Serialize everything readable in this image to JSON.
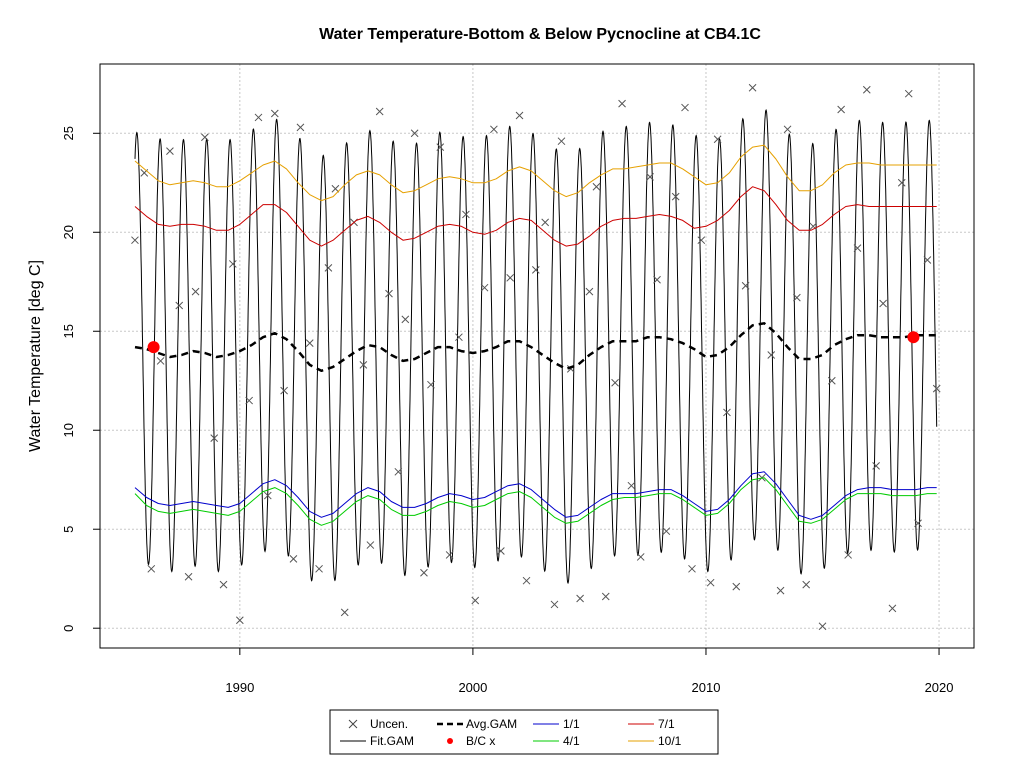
{
  "chart_data": {
    "type": "line",
    "title": "Water Temperature-Bottom & Below Pycnocline at CB4.1C",
    "xlabel": "",
    "ylabel": "Water Temperature [deg C]",
    "xlim": [
      1984.0,
      2021.5
    ],
    "ylim": [
      -1.0,
      28.5
    ],
    "x_ticks": [
      1990,
      2000,
      2010,
      2020
    ],
    "x_tick_labels": [
      "1990",
      "2000",
      "2010",
      "2020"
    ],
    "y_ticks": [
      0,
      5,
      10,
      15,
      20,
      25
    ],
    "y_tick_labels": [
      "0",
      "5",
      "10",
      "15",
      "20",
      "25"
    ],
    "grid": true,
    "legend_position": "bottom",
    "legend": [
      {
        "key": "uncen",
        "label": "Uncen."
      },
      {
        "key": "fitgam",
        "label": "Fit.GAM"
      },
      {
        "key": "avggam",
        "label": "Avg.GAM"
      },
      {
        "key": "bcx",
        "label": "B/C x"
      },
      {
        "key": "jan1",
        "label": "1/1"
      },
      {
        "key": "apr1",
        "label": "4/1"
      },
      {
        "key": "jul1",
        "label": "7/1"
      },
      {
        "key": "oct1",
        "label": "10/1"
      }
    ],
    "fit_seasonal": {
      "x_start": 1985.5,
      "x_end": 2019.9,
      "description_values": {
        "summer_peak": 25.5,
        "winter_trough": 3.8
      }
    },
    "series": [
      {
        "name": "Avg.GAM",
        "color": "#000000",
        "x": [
          1985.5,
          1986.0,
          1986.5,
          1987.0,
          1987.5,
          1988.0,
          1988.5,
          1989.0,
          1989.5,
          1990.0,
          1990.5,
          1991.0,
          1991.5,
          1992.0,
          1992.5,
          1993.0,
          1993.5,
          1994.0,
          1994.5,
          1995.0,
          1995.5,
          1996.0,
          1996.5,
          1997.0,
          1997.5,
          1998.0,
          1998.5,
          1999.0,
          1999.5,
          2000.0,
          2000.5,
          2001.0,
          2001.5,
          2002.0,
          2002.5,
          2003.0,
          2003.5,
          2004.0,
          2004.5,
          2005.0,
          2005.5,
          2006.0,
          2006.5,
          2007.0,
          2007.5,
          2008.0,
          2008.5,
          2009.0,
          2009.5,
          2010.0,
          2010.5,
          2011.0,
          2011.5,
          2012.0,
          2012.5,
          2013.0,
          2013.5,
          2014.0,
          2014.5,
          2015.0,
          2015.5,
          2016.0,
          2016.5,
          2017.0,
          2017.5,
          2018.0,
          2018.5,
          2019.0,
          2019.5,
          2019.9
        ],
        "values": [
          14.2,
          14.1,
          13.9,
          13.7,
          13.8,
          14.0,
          13.9,
          13.7,
          13.8,
          14.0,
          14.3,
          14.7,
          14.9,
          14.6,
          14.0,
          13.3,
          13.0,
          13.2,
          13.6,
          14.0,
          14.3,
          14.2,
          13.8,
          13.5,
          13.6,
          13.9,
          14.2,
          14.2,
          14.0,
          13.9,
          14.0,
          14.2,
          14.5,
          14.5,
          14.2,
          13.8,
          13.4,
          13.1,
          13.3,
          13.8,
          14.2,
          14.5,
          14.5,
          14.5,
          14.7,
          14.7,
          14.6,
          14.4,
          14.1,
          13.7,
          13.8,
          14.2,
          14.8,
          15.3,
          15.4,
          14.9,
          14.2,
          13.6,
          13.6,
          13.8,
          14.3,
          14.6,
          14.8,
          14.8,
          14.7,
          14.7,
          14.7,
          14.8,
          14.8,
          14.8
        ]
      },
      {
        "name": "1/1",
        "color": "#0000cc",
        "x": [
          1985.5,
          1986.0,
          1986.5,
          1987.0,
          1987.5,
          1988.0,
          1988.5,
          1989.0,
          1989.5,
          1990.0,
          1990.5,
          1991.0,
          1991.5,
          1992.0,
          1992.5,
          1993.0,
          1993.5,
          1994.0,
          1994.5,
          1995.0,
          1995.5,
          1996.0,
          1996.5,
          1997.0,
          1997.5,
          1998.0,
          1998.5,
          1999.0,
          1999.5,
          2000.0,
          2000.5,
          2001.0,
          2001.5,
          2002.0,
          2002.5,
          2003.0,
          2003.5,
          2004.0,
          2004.5,
          2005.0,
          2005.5,
          2006.0,
          2006.5,
          2007.0,
          2007.5,
          2008.0,
          2008.5,
          2009.0,
          2009.5,
          2010.0,
          2010.5,
          2011.0,
          2011.5,
          2012.0,
          2012.5,
          2013.0,
          2013.5,
          2014.0,
          2014.5,
          2015.0,
          2015.5,
          2016.0,
          2016.5,
          2017.0,
          2017.5,
          2018.0,
          2018.5,
          2019.0,
          2019.5,
          2019.9
        ],
        "values": [
          7.1,
          6.6,
          6.3,
          6.2,
          6.3,
          6.4,
          6.3,
          6.2,
          6.1,
          6.3,
          6.8,
          7.3,
          7.5,
          7.2,
          6.6,
          5.9,
          5.6,
          5.8,
          6.3,
          6.8,
          7.1,
          6.9,
          6.4,
          6.1,
          6.1,
          6.3,
          6.6,
          6.8,
          6.7,
          6.5,
          6.6,
          6.9,
          7.2,
          7.3,
          7.0,
          6.5,
          6.0,
          5.6,
          5.7,
          6.1,
          6.5,
          6.8,
          6.8,
          6.8,
          6.9,
          7.0,
          7.0,
          6.7,
          6.3,
          5.9,
          6.0,
          6.5,
          7.2,
          7.8,
          7.9,
          7.3,
          6.5,
          5.7,
          5.5,
          5.7,
          6.2,
          6.7,
          7.0,
          7.1,
          7.1,
          7.0,
          7.0,
          7.0,
          7.1,
          7.1
        ]
      },
      {
        "name": "4/1",
        "color": "#00cc00",
        "x": [
          1985.5,
          1986.0,
          1986.5,
          1987.0,
          1987.5,
          1988.0,
          1988.5,
          1989.0,
          1989.5,
          1990.0,
          1990.5,
          1991.0,
          1991.5,
          1992.0,
          1992.5,
          1993.0,
          1993.5,
          1994.0,
          1994.5,
          1995.0,
          1995.5,
          1996.0,
          1996.5,
          1997.0,
          1997.5,
          1998.0,
          1998.5,
          1999.0,
          1999.5,
          2000.0,
          2000.5,
          2001.0,
          2001.5,
          2002.0,
          2002.5,
          2003.0,
          2003.5,
          2004.0,
          2004.5,
          2005.0,
          2005.5,
          2006.0,
          2006.5,
          2007.0,
          2007.5,
          2008.0,
          2008.5,
          2009.0,
          2009.5,
          2010.0,
          2010.5,
          2011.0,
          2011.5,
          2012.0,
          2012.5,
          2013.0,
          2013.5,
          2014.0,
          2014.5,
          2015.0,
          2015.5,
          2016.0,
          2016.5,
          2017.0,
          2017.5,
          2018.0,
          2018.5,
          2019.0,
          2019.5,
          2019.9
        ],
        "values": [
          6.8,
          6.2,
          5.9,
          5.8,
          5.9,
          6.0,
          5.9,
          5.8,
          5.7,
          5.9,
          6.4,
          6.9,
          7.1,
          6.8,
          6.2,
          5.5,
          5.2,
          5.4,
          5.9,
          6.4,
          6.7,
          6.5,
          6.0,
          5.7,
          5.7,
          5.9,
          6.2,
          6.4,
          6.3,
          6.1,
          6.2,
          6.5,
          6.8,
          6.9,
          6.6,
          6.1,
          5.6,
          5.3,
          5.4,
          5.8,
          6.2,
          6.5,
          6.6,
          6.6,
          6.7,
          6.8,
          6.8,
          6.5,
          6.1,
          5.7,
          5.8,
          6.3,
          7.0,
          7.5,
          7.6,
          7.0,
          6.2,
          5.4,
          5.3,
          5.5,
          6.0,
          6.5,
          6.8,
          6.8,
          6.8,
          6.7,
          6.7,
          6.7,
          6.8,
          6.8
        ]
      },
      {
        "name": "7/1",
        "color": "#cc0000",
        "x": [
          1985.5,
          1986.0,
          1986.5,
          1987.0,
          1987.5,
          1988.0,
          1988.5,
          1989.0,
          1989.5,
          1990.0,
          1990.5,
          1991.0,
          1991.5,
          1992.0,
          1992.5,
          1993.0,
          1993.5,
          1994.0,
          1994.5,
          1995.0,
          1995.5,
          1996.0,
          1996.5,
          1997.0,
          1997.5,
          1998.0,
          1998.5,
          1999.0,
          1999.5,
          2000.0,
          2000.5,
          2001.0,
          2001.5,
          2002.0,
          2002.5,
          2003.0,
          2003.5,
          2004.0,
          2004.5,
          2005.0,
          2005.5,
          2006.0,
          2006.5,
          2007.0,
          2007.5,
          2008.0,
          2008.5,
          2009.0,
          2009.5,
          2010.0,
          2010.5,
          2011.0,
          2011.5,
          2012.0,
          2012.5,
          2013.0,
          2013.5,
          2014.0,
          2014.5,
          2015.0,
          2015.5,
          2016.0,
          2016.5,
          2017.0,
          2017.5,
          2018.0,
          2018.5,
          2019.0,
          2019.5,
          2019.9
        ],
        "values": [
          21.3,
          20.8,
          20.4,
          20.3,
          20.4,
          20.4,
          20.3,
          20.1,
          20.1,
          20.4,
          20.9,
          21.4,
          21.4,
          21.0,
          20.3,
          19.6,
          19.3,
          19.6,
          20.1,
          20.6,
          20.8,
          20.5,
          20.0,
          19.6,
          19.7,
          20.0,
          20.3,
          20.4,
          20.3,
          20.0,
          19.9,
          20.1,
          20.5,
          20.7,
          20.6,
          20.1,
          19.6,
          19.3,
          19.4,
          19.8,
          20.3,
          20.6,
          20.7,
          20.7,
          20.8,
          20.9,
          20.8,
          20.6,
          20.2,
          20.3,
          20.6,
          21.1,
          21.8,
          22.3,
          22.1,
          21.4,
          20.6,
          20.1,
          20.1,
          20.4,
          20.9,
          21.3,
          21.4,
          21.3,
          21.3,
          21.3,
          21.3,
          21.3,
          21.3,
          21.3
        ]
      },
      {
        "name": "10/1",
        "color": "#e6a000",
        "x": [
          1985.5,
          1986.0,
          1986.5,
          1987.0,
          1987.5,
          1988.0,
          1988.5,
          1989.0,
          1989.5,
          1990.0,
          1990.5,
          1991.0,
          1991.5,
          1992.0,
          1992.5,
          1993.0,
          1993.5,
          1994.0,
          1994.5,
          1995.0,
          1995.5,
          1996.0,
          1996.5,
          1997.0,
          1997.5,
          1998.0,
          1998.5,
          1999.0,
          1999.5,
          2000.0,
          2000.5,
          2001.0,
          2001.5,
          2002.0,
          2002.5,
          2003.0,
          2003.5,
          2004.0,
          2004.5,
          2005.0,
          2005.5,
          2006.0,
          2006.5,
          2007.0,
          2007.5,
          2008.0,
          2008.5,
          2009.0,
          2009.5,
          2010.0,
          2010.5,
          2011.0,
          2011.5,
          2012.0,
          2012.5,
          2013.0,
          2013.5,
          2014.0,
          2014.5,
          2015.0,
          2015.5,
          2016.0,
          2016.5,
          2017.0,
          2017.5,
          2018.0,
          2018.5,
          2019.0,
          2019.5,
          2019.9
        ],
        "values": [
          23.6,
          23.1,
          22.6,
          22.4,
          22.5,
          22.6,
          22.5,
          22.3,
          22.3,
          22.6,
          23.0,
          23.4,
          23.6,
          23.2,
          22.5,
          21.9,
          21.6,
          21.8,
          22.4,
          22.9,
          23.1,
          22.9,
          22.4,
          22.0,
          22.1,
          22.4,
          22.7,
          22.8,
          22.7,
          22.5,
          22.5,
          22.7,
          23.1,
          23.3,
          23.1,
          22.6,
          22.1,
          21.8,
          22.0,
          22.5,
          22.9,
          23.2,
          23.2,
          23.3,
          23.4,
          23.5,
          23.5,
          23.2,
          22.8,
          22.4,
          22.5,
          23.0,
          23.8,
          24.3,
          24.4,
          23.7,
          22.8,
          22.1,
          22.1,
          22.4,
          23.0,
          23.4,
          23.5,
          23.5,
          23.4,
          23.4,
          23.4,
          23.4,
          23.4,
          23.4
        ]
      }
    ],
    "bc_points": {
      "name": "B/C x",
      "x": [
        1986.3,
        2018.9
      ],
      "values": [
        14.2,
        14.7
      ]
    },
    "uncen_points": {
      "name": "Uncen.",
      "x": [
        1985.5,
        1985.9,
        1986.2,
        1986.6,
        1987.0,
        1987.4,
        1987.8,
        1988.1,
        1988.5,
        1988.9,
        1989.3,
        1989.7,
        1990.0,
        1990.4,
        1990.8,
        1991.2,
        1991.5,
        1991.9,
        1992.3,
        1992.6,
        1993.0,
        1993.4,
        1993.8,
        1994.1,
        1994.5,
        1994.9,
        1995.3,
        1995.6,
        1996.0,
        1996.4,
        1996.8,
        1997.1,
        1997.5,
        1997.9,
        1998.2,
        1998.6,
        1999.0,
        1999.4,
        1999.7,
        2000.1,
        2000.5,
        2000.9,
        2001.2,
        2001.6,
        2002.0,
        2002.3,
        2002.7,
        2003.1,
        2003.5,
        2003.8,
        2004.2,
        2004.6,
        2005.0,
        2005.3,
        2005.7,
        2006.1,
        2006.4,
        2006.8,
        2007.2,
        2007.6,
        2007.9,
        2008.3,
        2008.7,
        2009.1,
        2009.4,
        2009.8,
        2010.2,
        2010.5,
        2010.9,
        2011.3,
        2011.7,
        2012.0,
        2012.4,
        2012.8,
        2013.2,
        2013.5,
        2013.9,
        2014.3,
        2014.6,
        2015.0,
        2015.4,
        2015.8,
        2016.1,
        2016.5,
        2016.9,
        2017.3,
        2017.6,
        2018.0,
        2018.4,
        2018.7,
        2019.1,
        2019.5,
        2019.9
      ],
      "values": [
        19.6,
        23.0,
        3.0,
        13.5,
        24.1,
        16.3,
        2.6,
        17.0,
        24.8,
        9.6,
        2.2,
        18.4,
        0.4,
        11.5,
        25.8,
        6.7,
        26.0,
        12.0,
        3.5,
        25.3,
        14.4,
        3.0,
        18.2,
        22.2,
        0.8,
        20.5,
        13.3,
        4.2,
        26.1,
        16.9,
        7.9,
        15.6,
        25.0,
        2.8,
        12.3,
        24.3,
        3.7,
        14.7,
        20.9,
        1.4,
        17.2,
        25.2,
        3.9,
        17.7,
        25.9,
        2.4,
        18.1,
        20.5,
        1.2,
        24.6,
        13.1,
        1.5,
        17.0,
        22.3,
        1.6,
        12.4,
        26.5,
        7.2,
        3.6,
        22.8,
        17.6,
        4.9,
        21.8,
        26.3,
        3.0,
        19.6,
        2.3,
        24.7,
        10.9,
        2.1,
        17.3,
        27.3,
        7.6,
        13.8,
        1.9,
        25.2,
        16.7,
        2.2,
        20.3,
        0.1,
        12.5,
        26.2,
        3.7,
        19.2,
        27.2,
        8.2,
        16.4,
        1.0,
        22.5,
        27.0,
        5.3,
        18.6,
        12.1
      ]
    }
  }
}
